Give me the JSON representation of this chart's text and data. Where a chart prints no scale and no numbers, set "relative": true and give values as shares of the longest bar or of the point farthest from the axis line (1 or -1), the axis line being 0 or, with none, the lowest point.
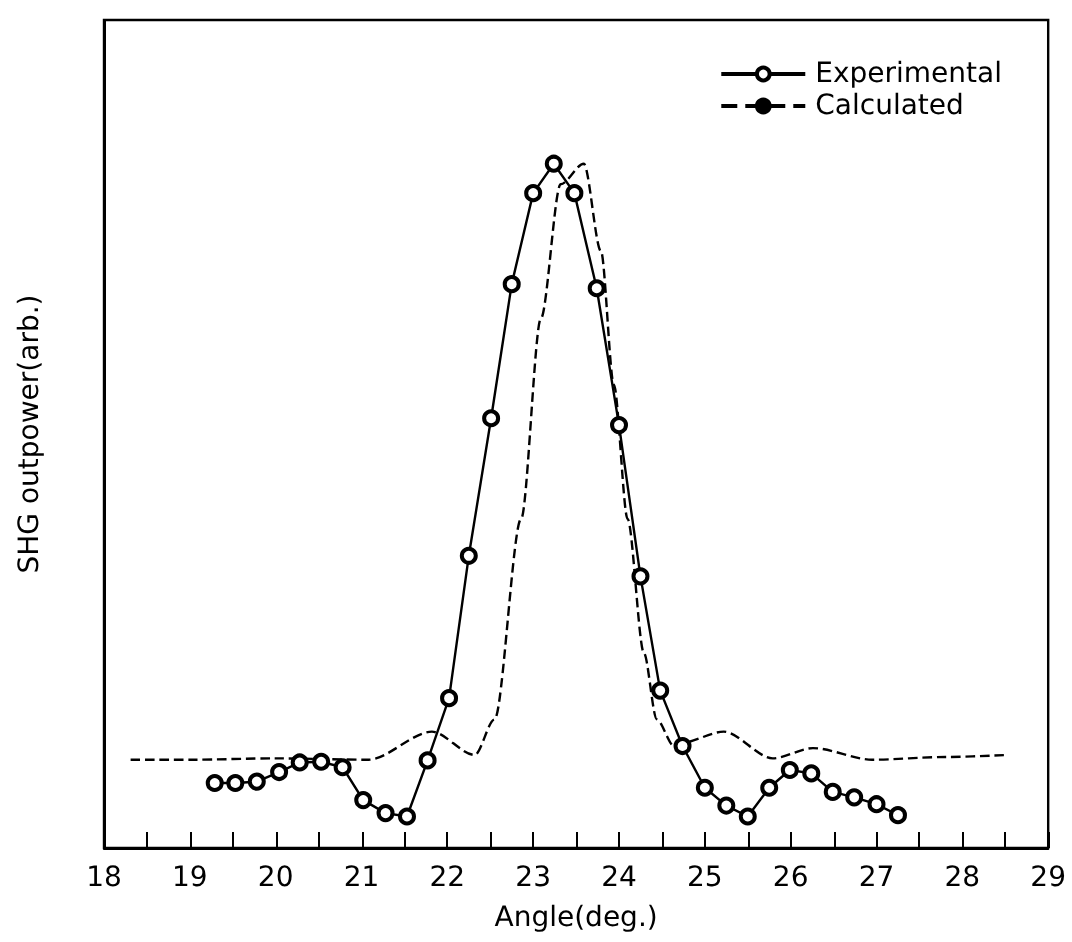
{
  "chart_data": {
    "type": "line",
    "relative": true,
    "xlabel": "Angle(deg.)",
    "ylabel": "SHG outpower(arb.)",
    "xlim": [
      18,
      29
    ],
    "xticks": [
      18,
      {
        "value": 18.5,
        "label": null
      },
      19,
      {
        "value": 19.5,
        "label": null
      },
      20,
      {
        "value": 20.5,
        "label": null
      },
      21,
      {
        "value": 21.5,
        "label": null
      },
      22,
      {
        "value": 22.5,
        "label": null
      },
      23,
      {
        "value": 23.5,
        "label": null
      },
      24,
      {
        "value": 24.5,
        "label": null
      },
      25,
      {
        "value": 25.5,
        "label": null
      },
      26,
      {
        "value": 26.5,
        "label": null
      },
      27,
      {
        "value": 27.5,
        "label": null
      },
      28,
      {
        "value": 28.5,
        "label": null
      },
      29
    ],
    "legend": "top right",
    "grid": false,
    "series": [
      {
        "name": "Experimental",
        "color": "#000000",
        "marker": "circle",
        "line_style": "solid",
        "x": [
          19.29,
          19.53,
          19.78,
          20.04,
          20.28,
          20.53,
          20.78,
          21.02,
          21.28,
          21.53,
          21.77,
          22.02,
          22.25,
          22.51,
          22.75,
          23.0,
          23.24,
          23.48,
          23.74,
          24.0,
          24.25,
          24.48,
          24.74,
          25.0,
          25.25,
          25.5,
          25.75,
          25.99,
          26.24,
          26.49,
          26.74,
          27.0,
          27.25
        ],
        "values": [
          0.095,
          0.095,
          0.097,
          0.111,
          0.125,
          0.126,
          0.118,
          0.07,
          0.051,
          0.046,
          0.128,
          0.219,
          0.427,
          0.628,
          0.824,
          0.957,
          1.0,
          0.957,
          0.818,
          0.618,
          0.397,
          0.23,
          0.149,
          0.088,
          0.062,
          0.046,
          0.088,
          0.114,
          0.109,
          0.082,
          0.074,
          0.064,
          0.048
        ]
      },
      {
        "name": "Calculated",
        "color": "#000000",
        "marker": "none",
        "line_style": "dashed",
        "x": [
          18.31,
          19.0,
          20.0,
          21.08,
          21.82,
          22.32,
          22.55,
          22.86,
          23.09,
          23.32,
          23.59,
          23.79,
          23.94,
          24.1,
          24.29,
          24.44,
          24.64,
          24.71,
          25.22,
          25.79,
          26.26,
          26.95,
          27.8,
          28.53
        ],
        "values": [
          0.129,
          0.129,
          0.131,
          0.129,
          0.17,
          0.136,
          0.188,
          0.481,
          0.774,
          0.97,
          1.0,
          0.872,
          0.677,
          0.481,
          0.285,
          0.188,
          0.149,
          0.153,
          0.17,
          0.131,
          0.146,
          0.129,
          0.133,
          0.136
        ]
      }
    ]
  }
}
